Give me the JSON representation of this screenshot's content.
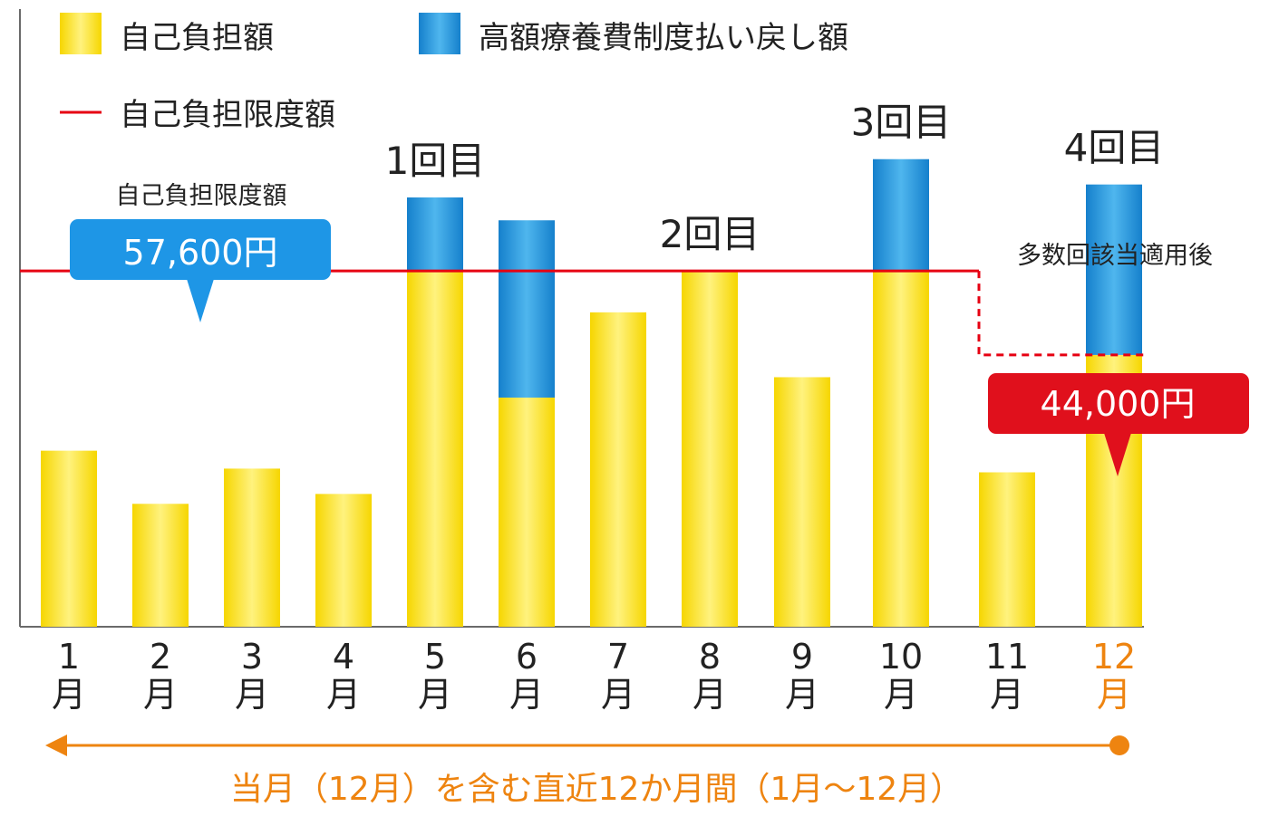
{
  "chart_data": {
    "type": "bar",
    "stacked": true,
    "categories": [
      {
        "num": "1",
        "unit": "月"
      },
      {
        "num": "2",
        "unit": "月"
      },
      {
        "num": "3",
        "unit": "月"
      },
      {
        "num": "4",
        "unit": "月"
      },
      {
        "num": "5",
        "unit": "月"
      },
      {
        "num": "6",
        "unit": "月"
      },
      {
        "num": "7",
        "unit": "月"
      },
      {
        "num": "8",
        "unit": "月"
      },
      {
        "num": "9",
        "unit": "月"
      },
      {
        "num": "10",
        "unit": "月"
      },
      {
        "num": "11",
        "unit": "月"
      },
      {
        "num": "12",
        "unit": "月"
      }
    ],
    "series": [
      {
        "name": "自己負担額",
        "values": [
          28500,
          19900,
          25600,
          21500,
          57600,
          37100,
          50900,
          57600,
          40400,
          57600,
          25000,
          44000
        ]
      },
      {
        "name": "高額療養費制度払い戻し額",
        "values": [
          0,
          0,
          0,
          0,
          11900,
          28700,
          0,
          0,
          0,
          18100,
          0,
          27600
        ]
      }
    ],
    "limit_line": {
      "name": "自己負担限度額",
      "value_before": 57600,
      "value_after": 44000,
      "change_after_category_index": 10
    },
    "count_labels": [
      {
        "category_index": 4,
        "text": "1回目"
      },
      {
        "category_index": 7,
        "text": "2回目"
      },
      {
        "category_index": 9,
        "text": "3回目"
      },
      {
        "category_index": 11,
        "text": "4回目"
      }
    ],
    "annotations": {
      "limit_title": "自己負担限度額",
      "limit_callout": "57,600円",
      "multi_note": "多数回該当適用後",
      "reduced_callout": "44,000円"
    },
    "period_label": "当月（12月）を含む直近12か月間（1月〜12月）",
    "ylim": [
      0,
      100000
    ],
    "grid": false,
    "legend_position": "top-left",
    "highlight_category_index": 11,
    "colors": {
      "self_pay": "#f9dc10",
      "self_pay_light": "#fff07a",
      "refund": "#1a88d6",
      "refund_light": "#4db4ee",
      "limit": "#e60012",
      "callout_blue": "#1e96e6",
      "callout_red": "#e0101c",
      "accent": "#ee8410",
      "axis": "#6a6a6a",
      "text": "#222222"
    }
  }
}
